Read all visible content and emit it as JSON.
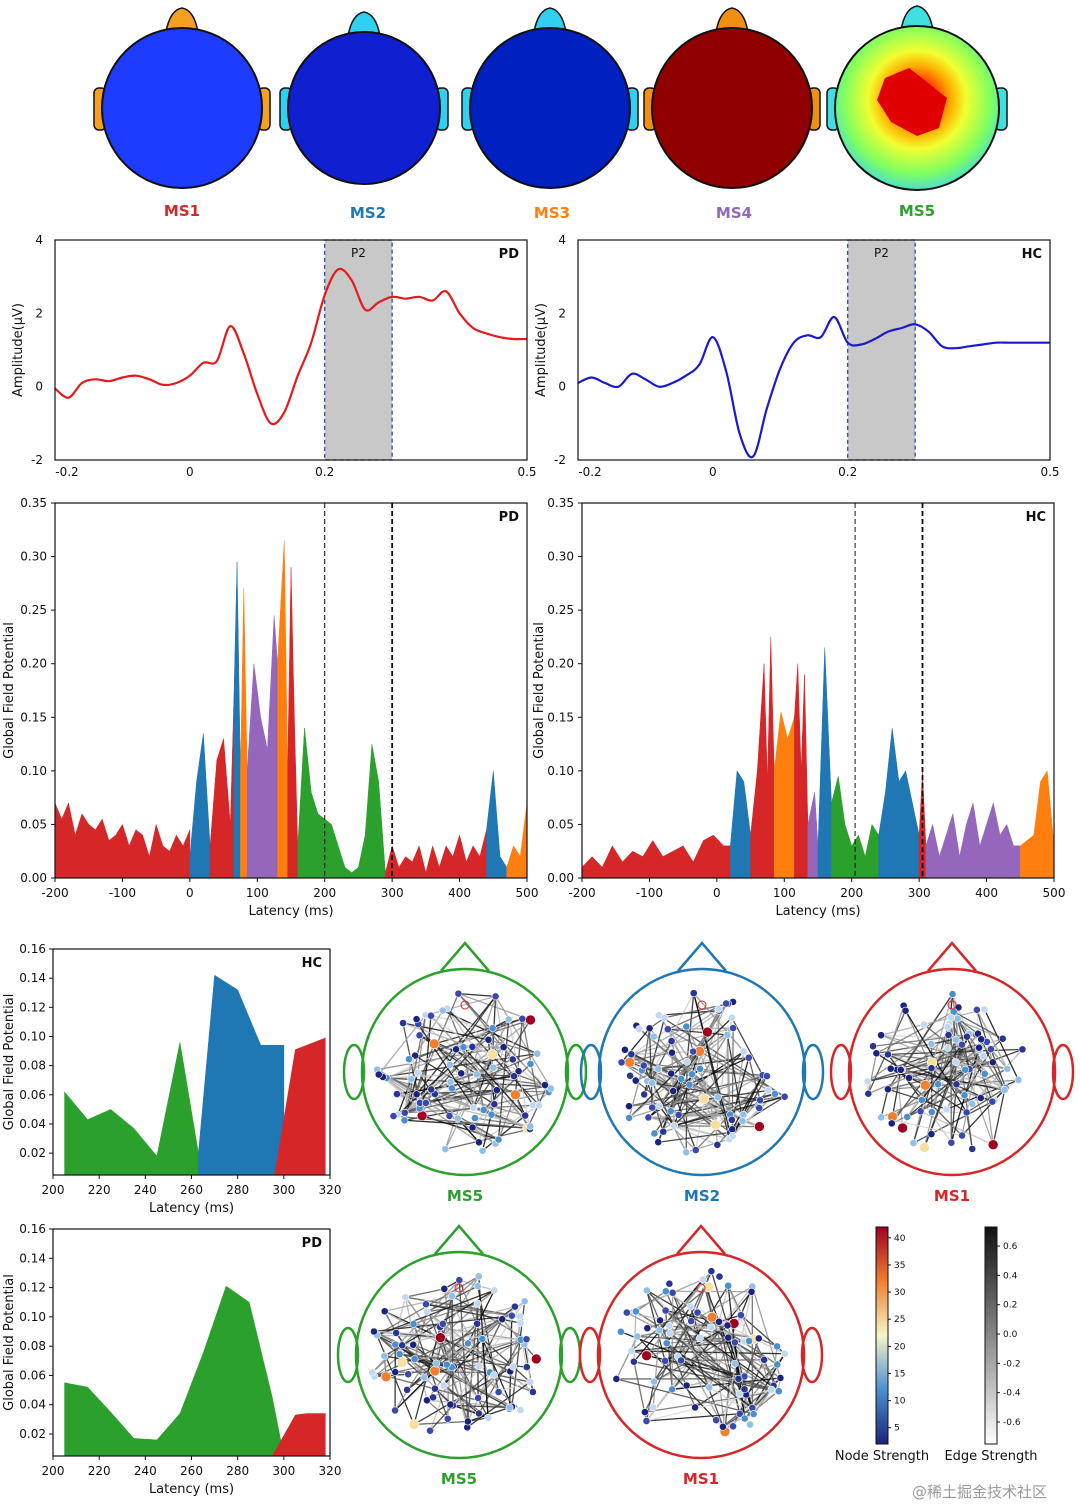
{
  "colors": {
    "MS1": "#d62728",
    "MS2": "#1f77b4",
    "MS3": "#ff7f0e",
    "MS4": "#9467bd",
    "MS5": "#2ca02c",
    "PD_line": "#e41a1c",
    "HC_line": "#1a1acc",
    "window": "#c8c8c8"
  },
  "microstates": [
    {
      "name": "MS1",
      "label": "MS1"
    },
    {
      "name": "MS2",
      "label": "MS2"
    },
    {
      "name": "MS3",
      "label": "MS3"
    },
    {
      "name": "MS4",
      "label": "MS4"
    },
    {
      "name": "MS5",
      "label": "MS5"
    }
  ],
  "chart_data": [
    {
      "id": "erp_pd",
      "type": "line",
      "tag": "PD",
      "ylabel": "Amplitude(μV)",
      "window_label": "P2",
      "xlim": [
        -0.2,
        0.5
      ],
      "ylim": [
        -2,
        4
      ],
      "xticks": [
        "-0.2",
        "0",
        "0.2",
        "0.5"
      ],
      "yticks": [
        "-2",
        "0",
        "2",
        "4"
      ],
      "window": [
        0.2,
        0.3
      ],
      "x": [
        -0.2,
        -0.18,
        -0.16,
        -0.14,
        -0.12,
        -0.1,
        -0.08,
        -0.06,
        -0.04,
        -0.02,
        0,
        0.02,
        0.04,
        0.06,
        0.08,
        0.1,
        0.12,
        0.14,
        0.16,
        0.18,
        0.2,
        0.22,
        0.24,
        0.26,
        0.28,
        0.3,
        0.32,
        0.34,
        0.36,
        0.38,
        0.4,
        0.42,
        0.44,
        0.46,
        0.48,
        0.5
      ],
      "y": [
        -0.05,
        -0.3,
        0.1,
        0.2,
        0.15,
        0.25,
        0.3,
        0.2,
        0.05,
        0.1,
        0.3,
        0.65,
        0.7,
        1.65,
        0.9,
        -0.2,
        -1.0,
        -0.7,
        0.3,
        1.2,
        2.5,
        3.2,
        2.9,
        2.1,
        2.3,
        2.45,
        2.4,
        2.45,
        2.35,
        2.6,
        2.0,
        1.6,
        1.45,
        1.35,
        1.3,
        1.3
      ]
    },
    {
      "id": "erp_hc",
      "type": "line",
      "tag": "HC",
      "ylabel": "Amplitude(μV)",
      "window_label": "P2",
      "xlim": [
        -0.2,
        0.5
      ],
      "ylim": [
        -2,
        4
      ],
      "xticks": [
        "-0.2",
        "0",
        "0.2",
        "0.5"
      ],
      "yticks": [
        "-2",
        "0",
        "2",
        "4"
      ],
      "window": [
        0.2,
        0.3
      ],
      "x": [
        -0.2,
        -0.18,
        -0.16,
        -0.14,
        -0.12,
        -0.1,
        -0.08,
        -0.06,
        -0.04,
        -0.02,
        0,
        0.02,
        0.04,
        0.06,
        0.08,
        0.1,
        0.12,
        0.14,
        0.16,
        0.18,
        0.2,
        0.22,
        0.24,
        0.26,
        0.28,
        0.3,
        0.32,
        0.34,
        0.36,
        0.38,
        0.4,
        0.42,
        0.44,
        0.46,
        0.48,
        0.5
      ],
      "y": [
        0.1,
        0.25,
        0.1,
        0.0,
        0.35,
        0.2,
        0.0,
        0.1,
        0.3,
        0.6,
        1.35,
        0.4,
        -1.3,
        -1.9,
        -0.6,
        0.5,
        1.2,
        1.4,
        1.35,
        1.9,
        1.2,
        1.15,
        1.3,
        1.5,
        1.6,
        1.7,
        1.5,
        1.1,
        1.05,
        1.1,
        1.15,
        1.2,
        1.2,
        1.2,
        1.2,
        1.2
      ]
    },
    {
      "id": "gfp_pd",
      "type": "area",
      "tag": "PD",
      "xlabel": "Latency (ms)",
      "ylabel": "Global Field Potential",
      "xlim": [
        -200,
        500
      ],
      "ylim": [
        0,
        0.35
      ],
      "xticks": [
        "-200",
        "-100",
        "0",
        "100",
        "200",
        "300",
        "400",
        "500"
      ],
      "yticks": [
        "0.00",
        "0.05",
        "0.10",
        "0.15",
        "0.20",
        "0.25",
        "0.30",
        "0.35"
      ],
      "vlines": [
        200,
        300
      ],
      "segments": [
        {
          "ms": "MS1",
          "x": [
            -200,
            -190,
            -180,
            -170,
            -160,
            -150,
            -140,
            -130,
            -120,
            -110,
            -100,
            -90,
            -80,
            -70,
            -60,
            -50,
            -40,
            -30,
            -20,
            -10,
            0
          ],
          "y": [
            0.07,
            0.055,
            0.07,
            0.04,
            0.06,
            0.05,
            0.045,
            0.055,
            0.035,
            0.04,
            0.05,
            0.03,
            0.045,
            0.04,
            0.02,
            0.05,
            0.03,
            0.025,
            0.04,
            0.03,
            0.045
          ]
        },
        {
          "ms": "MS2",
          "x": [
            0,
            10,
            20,
            30
          ],
          "y": [
            0.02,
            0.09,
            0.135,
            0.03
          ]
        },
        {
          "ms": "MS1",
          "x": [
            30,
            40,
            50,
            60,
            65
          ],
          "y": [
            0.03,
            0.11,
            0.13,
            0.05,
            0.16
          ]
        },
        {
          "ms": "MS2",
          "x": [
            65,
            70,
            75
          ],
          "y": [
            0.16,
            0.295,
            0.1
          ]
        },
        {
          "ms": "MS3",
          "x": [
            75,
            80,
            85
          ],
          "y": [
            0.1,
            0.27,
            0.1
          ]
        },
        {
          "ms": "MS4",
          "x": [
            85,
            95,
            105,
            115
          ],
          "y": [
            0.1,
            0.2,
            0.15,
            0.12
          ]
        },
        {
          "ms": "MS4",
          "x": [
            115,
            125,
            130
          ],
          "y": [
            0.12,
            0.245,
            0.2
          ]
        },
        {
          "ms": "MS3",
          "x": [
            130,
            140,
            145
          ],
          "y": [
            0.2,
            0.315,
            0.1
          ]
        },
        {
          "ms": "MS1",
          "x": [
            145,
            150,
            155,
            160
          ],
          "y": [
            0.1,
            0.29,
            0.15,
            0.03
          ]
        },
        {
          "ms": "MS5",
          "x": [
            160,
            170,
            180,
            190,
            200,
            210,
            220,
            230,
            240,
            250,
            260,
            270,
            280,
            290
          ],
          "y": [
            0.03,
            0.14,
            0.08,
            0.06,
            0.055,
            0.05,
            0.03,
            0.01,
            0.005,
            0.01,
            0.04,
            0.125,
            0.09,
            0.005
          ]
        },
        {
          "ms": "MS1",
          "x": [
            290,
            300,
            310,
            320,
            330,
            340,
            350,
            360,
            370,
            380,
            390,
            400,
            410,
            420,
            430,
            440
          ],
          "y": [
            0.005,
            0.03,
            0.01,
            0.02,
            0.015,
            0.03,
            0.005,
            0.03,
            0.01,
            0.03,
            0.02,
            0.04,
            0.015,
            0.03,
            0.02,
            0.045
          ]
        },
        {
          "ms": "MS2",
          "x": [
            440,
            450,
            460,
            470
          ],
          "y": [
            0.045,
            0.1,
            0.02,
            0.01
          ]
        },
        {
          "ms": "MS3",
          "x": [
            470,
            480,
            490,
            500
          ],
          "y": [
            0.01,
            0.03,
            0.02,
            0.07
          ]
        }
      ]
    },
    {
      "id": "gfp_hc",
      "type": "area",
      "tag": "HC",
      "xlabel": "Latency (ms)",
      "ylabel": "Global Field Potential",
      "xlim": [
        -200,
        500
      ],
      "ylim": [
        0,
        0.35
      ],
      "xticks": [
        "-200",
        "-100",
        "0",
        "100",
        "200",
        "300",
        "400",
        "500"
      ],
      "yticks": [
        "0.00",
        "0.05",
        "0.10",
        "0.15",
        "0.20",
        "0.25",
        "0.30",
        "0.35"
      ],
      "vlines": [
        205,
        305
      ],
      "segments": [
        {
          "ms": "MS1",
          "x": [
            -200,
            -185,
            -170,
            -155,
            -140,
            -125,
            -110,
            -95,
            -80,
            -65,
            -50,
            -35,
            -20,
            -5,
            10,
            20
          ],
          "y": [
            0.01,
            0.02,
            0.01,
            0.03,
            0.015,
            0.025,
            0.02,
            0.035,
            0.02,
            0.025,
            0.03,
            0.015,
            0.035,
            0.04,
            0.03,
            0.03
          ]
        },
        {
          "ms": "MS2",
          "x": [
            20,
            30,
            40,
            50
          ],
          "y": [
            0.03,
            0.1,
            0.09,
            0.04
          ]
        },
        {
          "ms": "MS1",
          "x": [
            50,
            60,
            70,
            75
          ],
          "y": [
            0.04,
            0.1,
            0.2,
            0.09
          ]
        },
        {
          "ms": "MS1",
          "x": [
            75,
            80,
            85
          ],
          "y": [
            0.09,
            0.225,
            0.1
          ]
        },
        {
          "ms": "MS3",
          "x": [
            85,
            95,
            105,
            115
          ],
          "y": [
            0.1,
            0.155,
            0.13,
            0.15
          ]
        },
        {
          "ms": "MS1",
          "x": [
            115,
            120,
            125
          ],
          "y": [
            0.15,
            0.2,
            0.1
          ]
        },
        {
          "ms": "MS1",
          "x": [
            125,
            130,
            135
          ],
          "y": [
            0.1,
            0.19,
            0.05
          ]
        },
        {
          "ms": "MS4",
          "x": [
            135,
            145,
            150
          ],
          "y": [
            0.05,
            0.08,
            0.03
          ]
        },
        {
          "ms": "MS2",
          "x": [
            150,
            160,
            170
          ],
          "y": [
            0.03,
            0.215,
            0.07
          ]
        },
        {
          "ms": "MS5",
          "x": [
            170,
            180,
            190,
            200,
            210,
            220,
            230,
            240
          ],
          "y": [
            0.07,
            0.095,
            0.05,
            0.03,
            0.04,
            0.02,
            0.05,
            0.04
          ]
        },
        {
          "ms": "MS2",
          "x": [
            240,
            250,
            260,
            270,
            280,
            290,
            300
          ],
          "y": [
            0.04,
            0.08,
            0.14,
            0.09,
            0.1,
            0.07,
            0.04
          ]
        },
        {
          "ms": "MS1",
          "x": [
            300,
            305,
            310
          ],
          "y": [
            0.04,
            0.1,
            0.03
          ]
        },
        {
          "ms": "MS4",
          "x": [
            310,
            320,
            330,
            340,
            350,
            360,
            370,
            380,
            390,
            400,
            410,
            420,
            430,
            440,
            450
          ],
          "y": [
            0.03,
            0.05,
            0.02,
            0.04,
            0.06,
            0.02,
            0.05,
            0.07,
            0.03,
            0.05,
            0.07,
            0.04,
            0.05,
            0.03,
            0.03
          ]
        },
        {
          "ms": "MS3",
          "x": [
            450,
            460,
            470,
            480,
            490,
            500
          ],
          "y": [
            0.03,
            0.035,
            0.04,
            0.09,
            0.1,
            0.03
          ]
        }
      ]
    },
    {
      "id": "zoom_hc",
      "type": "area",
      "tag": "HC",
      "xlabel": "Latency (ms)",
      "ylabel": "Global Field Potential",
      "xlim": [
        200,
        320
      ],
      "ylim": [
        0.005,
        0.16
      ],
      "xticks": [
        "200",
        "220",
        "240",
        "260",
        "280",
        "300",
        "320"
      ],
      "yticks": [
        "0.02",
        "0.04",
        "0.06",
        "0.08",
        "0.10",
        "0.12",
        "0.14",
        "0.16"
      ],
      "vlines": [],
      "segments": [
        {
          "ms": "MS5",
          "x": [
            205,
            215,
            225,
            235,
            245,
            255,
            263
          ],
          "y": [
            0.062,
            0.043,
            0.05,
            0.037,
            0.018,
            0.096,
            0.02
          ]
        },
        {
          "ms": "MS2",
          "x": [
            263,
            270,
            280,
            290,
            300
          ],
          "y": [
            0.02,
            0.142,
            0.132,
            0.094,
            0.094
          ]
        },
        {
          "ms": "MS2",
          "x": [
            300,
            296
          ],
          "y": [
            0.094,
            0.005
          ]
        },
        {
          "ms": "MS1",
          "x": [
            296,
            305,
            318
          ],
          "y": [
            0.005,
            0.091,
            0.099
          ]
        }
      ]
    },
    {
      "id": "zoom_pd",
      "type": "area",
      "tag": "PD",
      "xlabel": "Latency (ms)",
      "ylabel": "Global Field Potential",
      "xlim": [
        200,
        320
      ],
      "ylim": [
        0.005,
        0.16
      ],
      "xticks": [
        "200",
        "220",
        "240",
        "260",
        "280",
        "300",
        "320"
      ],
      "yticks": [
        "0.02",
        "0.04",
        "0.06",
        "0.08",
        "0.10",
        "0.12",
        "0.14",
        "0.16"
      ],
      "vlines": [],
      "segments": [
        {
          "ms": "MS5",
          "x": [
            205,
            215,
            225,
            235,
            245,
            255,
            265,
            275,
            285,
            295,
            300
          ],
          "y": [
            0.055,
            0.052,
            0.035,
            0.017,
            0.016,
            0.034,
            0.075,
            0.121,
            0.11,
            0.045,
            0.005
          ]
        },
        {
          "ms": "MS1",
          "x": [
            295,
            305,
            310,
            318
          ],
          "y": [
            0.005,
            0.033,
            0.034,
            0.034
          ]
        }
      ]
    }
  ],
  "networks_hc": [
    {
      "ms": "MS5",
      "label": "MS5"
    },
    {
      "ms": "MS2",
      "label": "MS2"
    },
    {
      "ms": "MS1",
      "label": "MS1"
    }
  ],
  "networks_pd": [
    {
      "ms": "MS5",
      "label": "MS5"
    },
    {
      "ms": "MS1",
      "label": "MS1"
    }
  ],
  "colorbars": {
    "node": {
      "title": "Node Strength",
      "ticks": [
        "40",
        "35",
        "30",
        "25",
        "20",
        "15",
        "10",
        "5"
      ]
    },
    "edge": {
      "title": "Edge Strength",
      "ticks": [
        "0.6",
        "0.4",
        "0.2",
        "0.0",
        "-0.2",
        "-0.4",
        "-0.6"
      ]
    }
  },
  "watermark": "@稀土掘金技术社区"
}
